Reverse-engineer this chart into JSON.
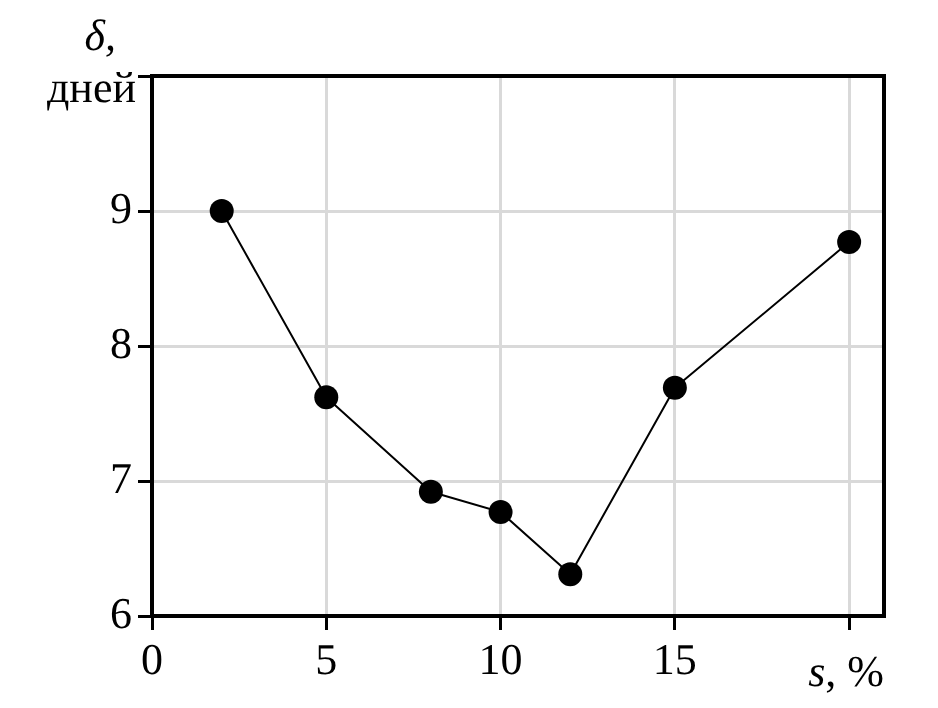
{
  "chart_data": {
    "type": "line",
    "xlabel": "s, %",
    "ylabel": "δ,\nдней",
    "x": [
      2,
      5,
      8,
      10,
      12,
      15,
      20
    ],
    "series": [
      {
        "color": "#000000",
        "values": [
          9.0,
          7.62,
          6.92,
          6.77,
          6.31,
          7.69,
          8.77
        ]
      }
    ],
    "xlim": [
      0,
      21
    ],
    "xticks": [
      0,
      5,
      10,
      15,
      {
        "value": 20,
        "label": null
      }
    ],
    "ylim": [
      6,
      10
    ],
    "yticks": [
      6,
      7,
      8,
      9,
      {
        "value": 10,
        "label": null
      }
    ],
    "grid": true,
    "legend": false,
    "marker": "circle",
    "line_style": "solid"
  }
}
